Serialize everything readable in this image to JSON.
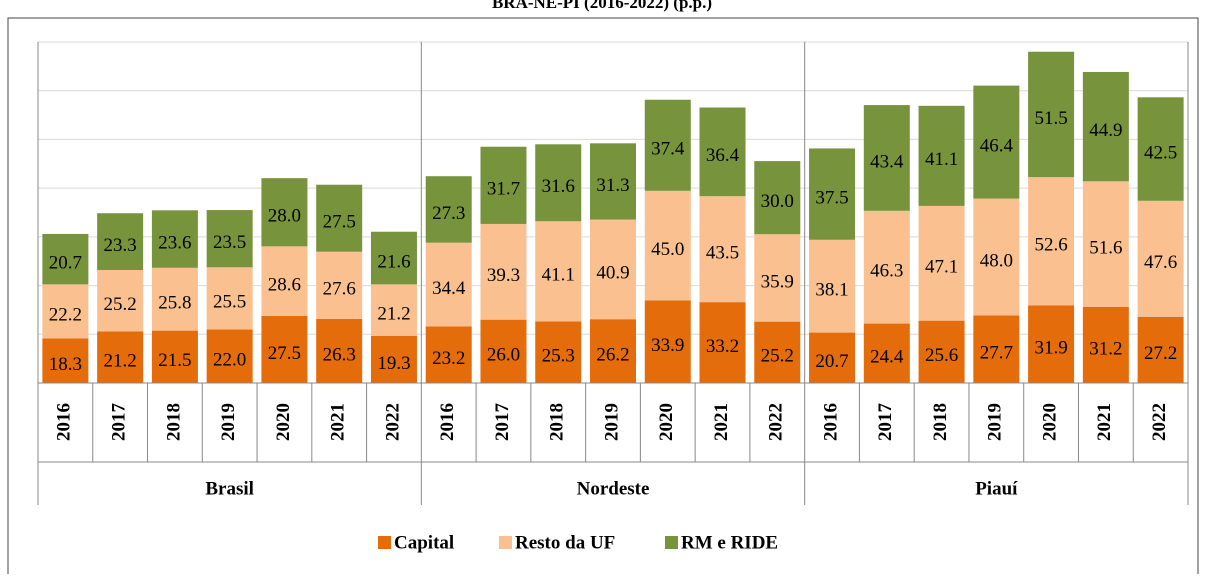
{
  "chart_data": {
    "type": "stacked_bar",
    "title": "BRA-NE-PI (2016-2022) (p.p.)",
    "groups": [
      "Brasil",
      "Nordeste",
      "Piauí"
    ],
    "categories": [
      "2016",
      "2017",
      "2018",
      "2019",
      "2020",
      "2021",
      "2022",
      "2016",
      "2017",
      "2018",
      "2019",
      "2020",
      "2021",
      "2022",
      "2016",
      "2017",
      "2018",
      "2019",
      "2020",
      "2021",
      "2022"
    ],
    "series": [
      {
        "name": "Capital",
        "color": "#e46c0a",
        "values": [
          18.3,
          21.2,
          21.5,
          22.0,
          27.5,
          26.3,
          19.3,
          23.2,
          26.0,
          25.3,
          26.2,
          33.9,
          33.2,
          25.2,
          20.7,
          24.4,
          25.6,
          27.7,
          31.9,
          31.2,
          27.2
        ],
        "value_labels": [
          "18.3",
          "21.2",
          "21.5",
          "22.0",
          "27.5",
          "26.3",
          "19.3",
          "23.2",
          "26.0",
          "25.3",
          "26.2",
          "33.9",
          "33.2",
          "25.2",
          "20.7",
          "24.4",
          "25.6",
          "27.7",
          "31.9",
          "31.2",
          "27.2"
        ]
      },
      {
        "name": "Resto da UF",
        "color": "#fac090",
        "values": [
          22.2,
          25.2,
          25.8,
          25.5,
          28.6,
          27.6,
          21.2,
          34.4,
          39.3,
          41.1,
          40.9,
          45.0,
          43.5,
          35.9,
          38.1,
          46.3,
          47.1,
          48.0,
          52.6,
          51.6,
          47.6
        ],
        "value_labels": [
          "22.2",
          "25.2",
          "25.8",
          "25.5",
          "28.6",
          "27.6",
          "21.2",
          "34.4",
          "39.3",
          "41.1",
          "40.9",
          "45.0",
          "43.5",
          "35.9",
          "38.1",
          "46.3",
          "47.1",
          "48.0",
          "52.6",
          "51.6",
          "47.6"
        ]
      },
      {
        "name": "RM e RIDE",
        "color": "#77933c",
        "values": [
          20.7,
          23.3,
          23.6,
          23.5,
          28.0,
          27.5,
          21.6,
          27.3,
          31.7,
          31.6,
          31.3,
          37.4,
          36.4,
          30.0,
          37.5,
          43.4,
          41.1,
          46.4,
          51.5,
          44.9,
          42.5
        ],
        "value_labels": [
          "20.7",
          "23.3",
          "23.6",
          "23.5",
          "28.0",
          "27.5",
          "21.6",
          "27.3",
          "31.7",
          "31.6",
          "31.3",
          "37.4",
          "36.4",
          "30.0",
          "37.5",
          "43.4",
          "41.1",
          "46.4",
          "51.5",
          "44.9",
          "42.5"
        ]
      }
    ],
    "ylim": [
      0,
      140
    ],
    "yticks": [
      0,
      20,
      40,
      60,
      80,
      100,
      120,
      140
    ],
    "grid": true
  }
}
